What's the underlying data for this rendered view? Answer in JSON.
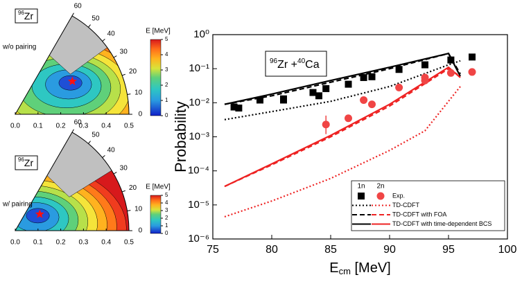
{
  "chart_data": [
    {
      "type": "pes",
      "nucleus": {
        "mass": "96",
        "symbol": "Zr"
      },
      "label": "w/o pairing",
      "colorbar_title": "E [MeV]",
      "colorbar_lim": [
        0,
        5
      ],
      "colorbar_ticks": [
        0,
        1,
        2,
        3,
        4,
        5
      ],
      "xlim": [
        0,
        0.5
      ],
      "xticks": [
        {
          "value": 0,
          "label": "0.0"
        },
        0.1,
        0.2,
        0.3,
        0.4,
        0.5
      ],
      "gamma_ticks": [
        0,
        10,
        20,
        30,
        40,
        50,
        60
      ],
      "minimum": {
        "beta": 0.29,
        "gamma": 30
      }
    },
    {
      "type": "pes",
      "nucleus": {
        "mass": "96",
        "symbol": "Zr"
      },
      "label": "w/ pairing",
      "colorbar_title": "E [MeV]",
      "colorbar_lim": [
        0,
        5
      ],
      "colorbar_ticks": [
        0,
        1,
        2,
        3,
        4,
        5
      ],
      "xlim": [
        0,
        0.5
      ],
      "xticks": [
        {
          "value": 0,
          "label": "0.0"
        },
        0.1,
        0.2,
        0.3,
        0.4,
        0.5
      ],
      "gamma_ticks": [
        0,
        10,
        20,
        30,
        40,
        50,
        60
      ],
      "minimum": {
        "beta": 0.13,
        "gamma": 34
      }
    },
    {
      "type": "probability",
      "ylabel": "Probability",
      "xlabel": {
        "text": "E",
        "sub": "cm",
        "unit": "[MeV]"
      },
      "annotation": [
        {
          "sup": "96",
          "text": "Zr +"
        },
        {
          "sup": "40",
          "text": "Ca"
        }
      ],
      "xlim": [
        75,
        100
      ],
      "xticks": [
        75,
        80,
        85,
        90,
        95,
        100
      ],
      "ylim": [
        1e-06,
        1
      ],
      "log_y": true,
      "yticks": [
        {
          "value": 1,
          "label": "10⁰"
        },
        {
          "value": 0.1,
          "label": "10⁻¹"
        },
        {
          "value": 0.01,
          "label": "10⁻²"
        },
        {
          "value": 0.001,
          "label": "10⁻³"
        },
        {
          "value": 0.0001,
          "label": "10⁻⁴"
        },
        {
          "value": 1e-05,
          "label": "10⁻⁵"
        },
        {
          "value": 1e-06,
          "label": "10⁻⁶"
        }
      ],
      "legend_groups": [
        "1n",
        "2n"
      ],
      "series": [
        {
          "name": "Exp.",
          "group": "1n",
          "marker": "square",
          "color": "#000000",
          "x": [
            76.8,
            77.2,
            79,
            81,
            81,
            83.5,
            84,
            84.6,
            86.5,
            87.8,
            88.5,
            90.8,
            93,
            95.2,
            97
          ],
          "values": [
            0.0075,
            0.007,
            0.012,
            0.012,
            0.013,
            0.02,
            0.016,
            0.026,
            0.035,
            0.055,
            0.058,
            0.095,
            0.13,
            0.18,
            0.22
          ]
        },
        {
          "name": "Exp.",
          "group": "2n",
          "marker": "circle",
          "color": "#f04545",
          "x": [
            84.6,
            86.5,
            87.8,
            88.5,
            90.8,
            93,
            93,
            95.2,
            97
          ],
          "values": [
            0.0023,
            0.0035,
            0.012,
            0.009,
            0.028,
            0.045,
            0.055,
            0.075,
            0.08
          ],
          "yerr_low": [
            0.0012,
            null,
            null,
            null,
            null,
            null,
            null,
            null,
            null
          ],
          "yerr_high": [
            0.0042,
            null,
            null,
            null,
            null,
            null,
            null,
            null,
            null
          ]
        },
        {
          "name": "TD-CDFT",
          "group": "1n",
          "line": "dotted",
          "color": "#000000",
          "x": [
            76,
            80,
            85,
            90,
            95,
            96
          ],
          "values": [
            0.0032,
            0.0055,
            0.011,
            0.03,
            0.13,
            0.17
          ]
        },
        {
          "name": "TD-CDFT",
          "group": "2n",
          "line": "dotted",
          "color": "#ee2222",
          "x": [
            76,
            80,
            85,
            90,
            93,
            96
          ],
          "values": [
            4.5e-06,
            1.3e-05,
            6e-05,
            0.0004,
            0.0015,
            0.03
          ]
        },
        {
          "name": "TD-CDFT with FOA",
          "group": "1n",
          "line": "dashed",
          "color": "#000000",
          "x": [
            76,
            80,
            85,
            90,
            95,
            96
          ],
          "values": [
            0.009,
            0.016,
            0.04,
            0.1,
            0.28,
            0.07
          ]
        },
        {
          "name": "TD-CDFT with FOA",
          "group": "2n",
          "line": "dashed",
          "color": "#ee2222",
          "x": [
            76,
            80,
            85,
            90,
            95,
            96
          ],
          "values": [
            3.5e-05,
            0.00015,
            0.001,
            0.008,
            0.1,
            0.06
          ]
        },
        {
          "name": "TD-CDFT with time-dependent BCS",
          "group": "1n",
          "line": "solid",
          "color": "#000000",
          "x": [
            76,
            80,
            85,
            90,
            95,
            96
          ],
          "values": [
            0.009,
            0.018,
            0.045,
            0.11,
            0.28,
            0.06
          ]
        },
        {
          "name": "TD-CDFT with time-dependent BCS",
          "group": "2n",
          "line": "solid",
          "color": "#ee2222",
          "x": [
            76,
            80,
            85,
            90,
            95,
            96
          ],
          "values": [
            3.5e-05,
            0.00016,
            0.0011,
            0.009,
            0.11,
            0.055
          ]
        }
      ]
    }
  ]
}
